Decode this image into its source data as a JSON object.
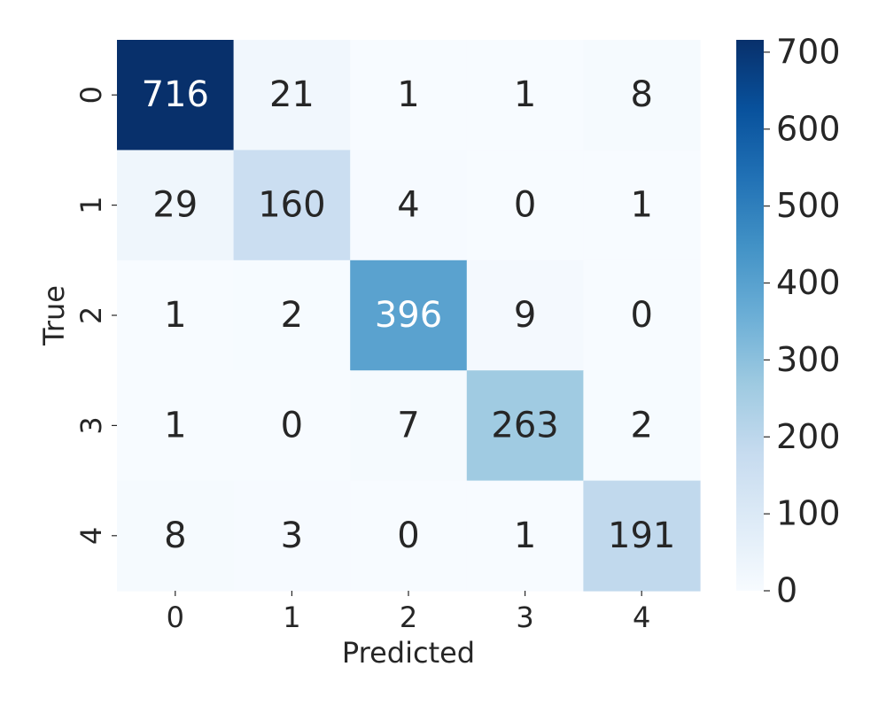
{
  "chart_data": {
    "type": "heatmap",
    "title": "",
    "xlabel": "Predicted",
    "ylabel": "True",
    "x_categories": [
      "0",
      "1",
      "2",
      "3",
      "4"
    ],
    "y_categories": [
      "0",
      "1",
      "2",
      "3",
      "4"
    ],
    "matrix": [
      [
        716,
        21,
        1,
        1,
        8
      ],
      [
        29,
        160,
        4,
        0,
        1
      ],
      [
        1,
        2,
        396,
        9,
        0
      ],
      [
        1,
        0,
        7,
        263,
        2
      ],
      [
        8,
        3,
        0,
        1,
        191
      ]
    ],
    "colormap": "Blues",
    "value_range": [
      0,
      716
    ],
    "colorbar": {
      "ticks": [
        0,
        100,
        200,
        300,
        400,
        500,
        600,
        700
      ],
      "tick_labels": [
        "0",
        "100",
        "200",
        "300",
        "400",
        "500",
        "600",
        "700"
      ]
    },
    "grid": false,
    "annotated": true
  },
  "colors": {
    "blues_scale": [
      "#f7fbff",
      "#deebf7",
      "#c6dbef",
      "#9ecae1",
      "#6baed6",
      "#4292c6",
      "#2171b5",
      "#08519c",
      "#08306b"
    ],
    "text_dark": "#262626",
    "text_light": "#ffffff"
  }
}
